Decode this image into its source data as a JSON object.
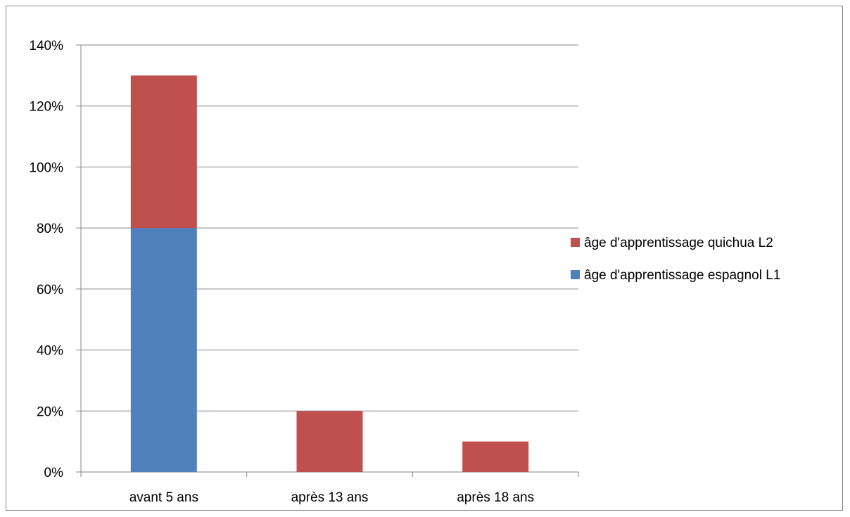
{
  "chart_data": {
    "type": "bar",
    "stacked": true,
    "categories": [
      "avant 5 ans",
      "après 13 ans",
      "après 18 ans"
    ],
    "series": [
      {
        "name": "âge d'apprentissage espagnol L1",
        "values": [
          80,
          0,
          0
        ],
        "color": "#4F81BD"
      },
      {
        "name": "âge d'apprentissage quichua L2",
        "values": [
          50,
          20,
          10
        ],
        "color": "#C0504D"
      }
    ],
    "yticks": [
      "0%",
      "20%",
      "40%",
      "60%",
      "80%",
      "100%",
      "120%",
      "140%"
    ],
    "ylim": [
      0,
      140
    ],
    "grid": true,
    "legend_position": "right",
    "legend_order": [
      1,
      0
    ],
    "title": "",
    "xlabel": "",
    "ylabel": ""
  }
}
